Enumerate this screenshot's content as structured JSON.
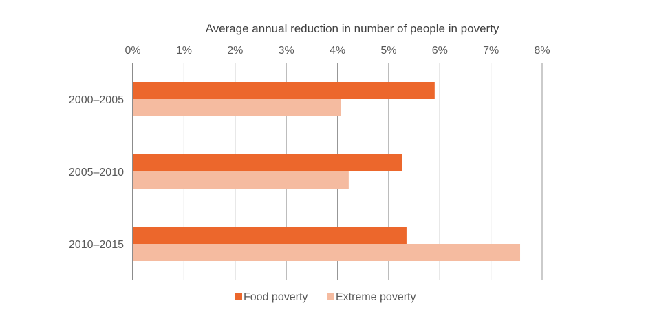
{
  "chart_data": {
    "type": "bar",
    "orientation": "horizontal",
    "title": "Average annual reduction in number of people in poverty",
    "categories": [
      "2000–2005",
      "2005–2010",
      "2010–2015"
    ],
    "series": [
      {
        "name": "Food poverty",
        "color": "#ec672c",
        "values": [
          5.9,
          5.27,
          5.35
        ]
      },
      {
        "name": "Extreme poverty",
        "color": "#f5bba0",
        "values": [
          4.07,
          4.22,
          7.57
        ]
      }
    ],
    "xlim": [
      0,
      8
    ],
    "xticks": [
      0,
      1,
      2,
      3,
      4,
      5,
      6,
      7,
      8
    ],
    "xtick_labels": [
      "0%",
      "1%",
      "2%",
      "3%",
      "4%",
      "5%",
      "6%",
      "7%",
      "8%"
    ],
    "xaxis_position": "top",
    "grid": "vertical",
    "legend_position": "bottom",
    "gridline_color": "#8c8c8c"
  }
}
